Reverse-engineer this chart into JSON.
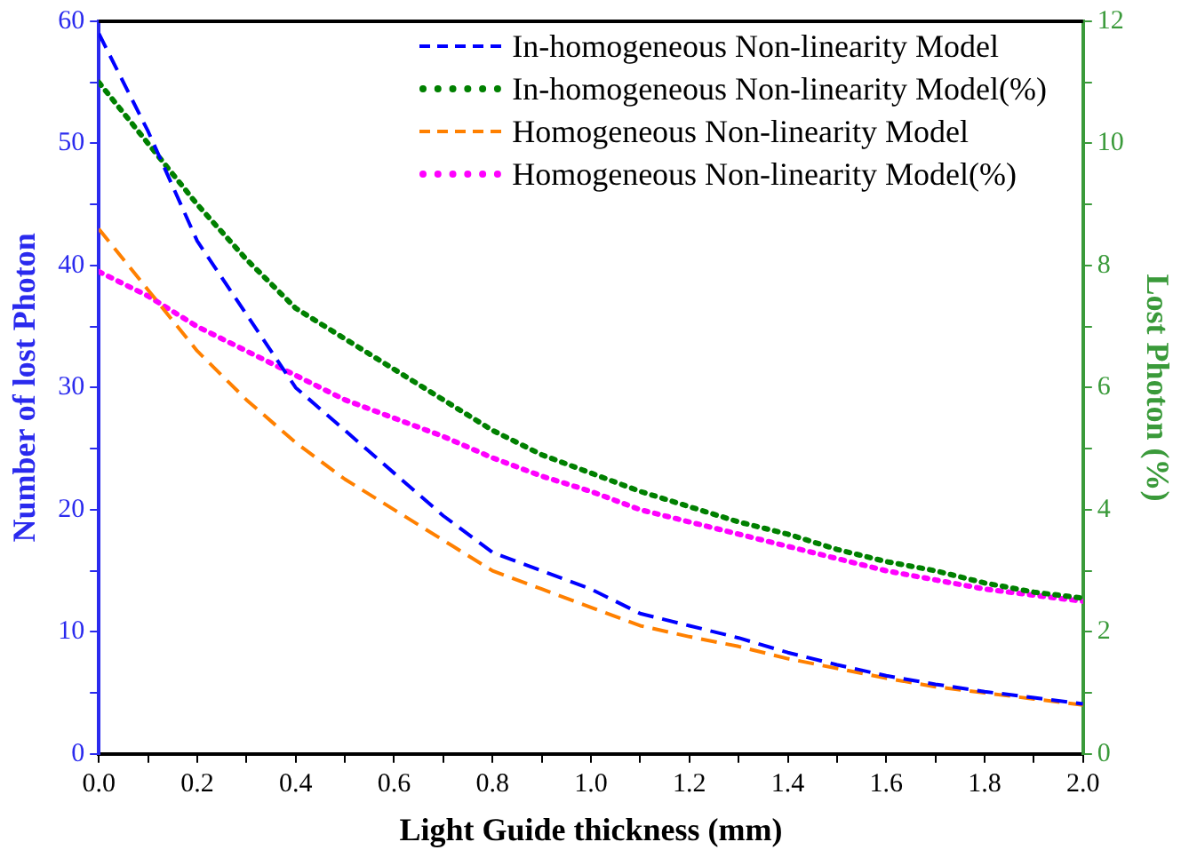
{
  "chart_data": {
    "type": "line",
    "xlabel": "Light Guide thickness (mm)",
    "ylabel": "Number of lost Photon",
    "y2label": "Lost Photon (%)",
    "x": [
      0,
      0.1,
      0.2,
      0.3,
      0.4,
      0.5,
      0.6,
      0.7,
      0.8,
      0.9,
      1.0,
      1.1,
      1.2,
      1.3,
      1.4,
      1.5,
      1.6,
      1.7,
      1.8,
      1.9,
      2.0
    ],
    "series": [
      {
        "name": "In-homogeneous Non-linearity Model",
        "color": "#0000ff",
        "line_style": "dashed",
        "values": [
          59,
          51,
          42,
          36,
          30,
          26.5,
          23,
          19.5,
          16.5,
          15,
          13.5,
          11.5,
          10.5,
          9.5,
          8.3,
          7.3,
          6.4,
          5.7,
          5.1,
          4.6,
          4.1
        ]
      },
      {
        "name": "In-homogeneous Non-linearity Model(%)",
        "color": "#008000",
        "line_style": "dotted",
        "axis": "y2",
        "values": [
          11,
          10,
          9,
          8.1,
          7.3,
          6.8,
          6.3,
          5.8,
          5.3,
          4.9,
          4.6,
          4.3,
          4.05,
          3.8,
          3.6,
          3.35,
          3.15,
          3,
          2.8,
          2.65,
          2.55
        ]
      },
      {
        "name": "Homogeneous Non-linearity Model",
        "color": "#ff8000",
        "line_style": "dashed",
        "values": [
          43,
          38,
          33,
          29,
          25.5,
          22.5,
          20,
          17.5,
          15,
          13.5,
          12,
          10.5,
          9.6,
          8.8,
          7.8,
          7,
          6.2,
          5.5,
          5,
          4.5,
          4
        ]
      },
      {
        "name": "Homogeneous Non-linearity Model(%)",
        "color": "#ff00ff",
        "line_style": "dotted",
        "axis": "y2",
        "values": [
          7.9,
          7.5,
          7,
          6.6,
          6.2,
          5.8,
          5.5,
          5.2,
          4.85,
          4.55,
          4.3,
          4,
          3.8,
          3.6,
          3.4,
          3.2,
          3,
          2.85,
          2.7,
          2.6,
          2.5
        ]
      }
    ],
    "xlim": [
      0,
      2
    ],
    "xticks": [
      {
        "value": 0,
        "label": "0.0"
      },
      {
        "value": 0.1,
        "label": null
      },
      {
        "value": 0.2,
        "label": "0.2"
      },
      {
        "value": 0.3,
        "label": null
      },
      {
        "value": 0.4,
        "label": "0.4"
      },
      {
        "value": 0.5,
        "label": null
      },
      {
        "value": 0.6,
        "label": "0.6"
      },
      {
        "value": 0.7,
        "label": null
      },
      {
        "value": 0.8,
        "label": "0.8"
      },
      {
        "value": 0.9,
        "label": null
      },
      {
        "value": 1,
        "label": "1.0"
      },
      {
        "value": 1.1,
        "label": null
      },
      {
        "value": 1.2,
        "label": "1.2"
      },
      {
        "value": 1.3,
        "label": null
      },
      {
        "value": 1.4,
        "label": "1.4"
      },
      {
        "value": 1.5,
        "label": null
      },
      {
        "value": 1.6,
        "label": "1.6"
      },
      {
        "value": 1.7,
        "label": null
      },
      {
        "value": 1.8,
        "label": "1.8"
      },
      {
        "value": 1.9,
        "label": null
      },
      {
        "value": 2,
        "label": "2.0"
      }
    ],
    "ylim": [
      0,
      60
    ],
    "yticks": [
      0,
      {
        "value": 5,
        "label": null
      },
      10,
      {
        "value": 15,
        "label": null
      },
      20,
      {
        "value": 25,
        "label": null
      },
      30,
      {
        "value": 35,
        "label": null
      },
      40,
      {
        "value": 45,
        "label": null
      },
      50,
      {
        "value": 55,
        "label": null
      },
      60
    ],
    "y2lim": [
      0,
      12
    ],
    "y2ticks": [
      0,
      {
        "value": 1,
        "label": null
      },
      2,
      {
        "value": 3,
        "label": null
      },
      4,
      {
        "value": 5,
        "label": null
      },
      6,
      {
        "value": 7,
        "label": null
      },
      8,
      {
        "value": 9,
        "label": null
      },
      10,
      {
        "value": 11,
        "label": null
      },
      12
    ],
    "grid": false,
    "legend": "top right",
    "marker": "none"
  }
}
